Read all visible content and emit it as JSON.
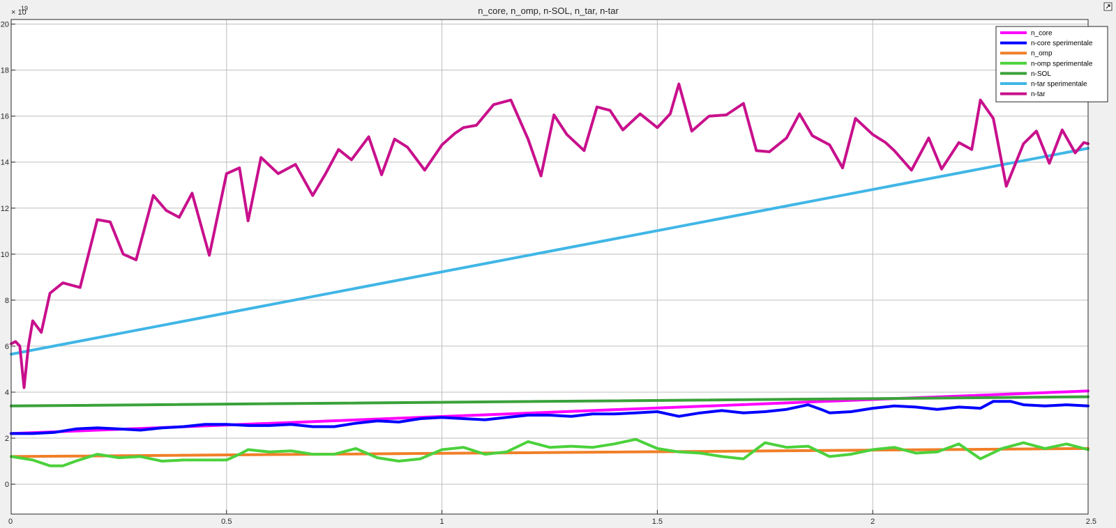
{
  "window": {
    "corner_icon_name": "expand-icon"
  },
  "chart_data": {
    "type": "line",
    "title": "n_core, n_omp, n-SOL, n_tar, n-tar",
    "xlabel": "",
    "ylabel": "",
    "xlim": [
      0,
      2.5
    ],
    "ylim": [
      -1.3,
      20.2
    ],
    "y_exponent_label": "× 10",
    "y_exponent_power": "19",
    "grid": true,
    "legend_position": "top-right",
    "x_ticks": [
      0,
      0.5,
      1,
      1.5,
      2,
      2.5
    ],
    "x_tick_labels": [
      "0",
      "0.5",
      "1",
      "1.5",
      "2",
      "2.5"
    ],
    "y_ticks": [
      0,
      2,
      4,
      6,
      8,
      10,
      12,
      14,
      16,
      18,
      20
    ],
    "y_tick_labels": [
      "0",
      "2",
      "4",
      "6",
      "8",
      "10",
      "12",
      "14",
      "16",
      "18",
      "20"
    ],
    "series": [
      {
        "name": "n_core",
        "color": "#ff00ff",
        "x": [
          0,
          2.5
        ],
        "values": [
          2.2,
          4.05
        ]
      },
      {
        "name": "n-core sperimentale",
        "color": "#0000ff",
        "x": [
          0,
          0.05,
          0.1,
          0.15,
          0.2,
          0.25,
          0.3,
          0.35,
          0.4,
          0.45,
          0.5,
          0.55,
          0.6,
          0.65,
          0.7,
          0.75,
          0.8,
          0.85,
          0.9,
          0.95,
          1.0,
          1.05,
          1.1,
          1.15,
          1.2,
          1.25,
          1.3,
          1.35,
          1.4,
          1.45,
          1.5,
          1.55,
          1.6,
          1.65,
          1.7,
          1.75,
          1.8,
          1.85,
          1.88,
          1.9,
          1.95,
          2.0,
          2.05,
          2.1,
          2.15,
          2.2,
          2.25,
          2.28,
          2.32,
          2.35,
          2.4,
          2.45,
          2.5
        ],
        "values": [
          2.2,
          2.2,
          2.25,
          2.4,
          2.45,
          2.4,
          2.35,
          2.45,
          2.5,
          2.6,
          2.6,
          2.55,
          2.55,
          2.6,
          2.5,
          2.5,
          2.65,
          2.75,
          2.7,
          2.85,
          2.9,
          2.85,
          2.8,
          2.9,
          3.0,
          3.0,
          2.95,
          3.05,
          3.05,
          3.1,
          3.15,
          2.95,
          3.1,
          3.2,
          3.1,
          3.15,
          3.25,
          3.45,
          3.25,
          3.1,
          3.15,
          3.3,
          3.4,
          3.35,
          3.25,
          3.35,
          3.3,
          3.6,
          3.6,
          3.45,
          3.4,
          3.45,
          3.4
        ]
      },
      {
        "name": "n_omp",
        "color": "#f07f28",
        "x": [
          0,
          2.5
        ],
        "values": [
          1.2,
          1.55
        ]
      },
      {
        "name": "n-omp sperimentale",
        "color": "#4cd13c",
        "x": [
          0,
          0.05,
          0.09,
          0.12,
          0.15,
          0.2,
          0.25,
          0.3,
          0.35,
          0.4,
          0.45,
          0.5,
          0.53,
          0.55,
          0.6,
          0.65,
          0.7,
          0.75,
          0.8,
          0.85,
          0.9,
          0.95,
          1.0,
          1.05,
          1.1,
          1.15,
          1.2,
          1.25,
          1.3,
          1.35,
          1.4,
          1.45,
          1.5,
          1.55,
          1.6,
          1.65,
          1.7,
          1.75,
          1.8,
          1.85,
          1.9,
          1.95,
          2.0,
          2.05,
          2.1,
          2.15,
          2.2,
          2.25,
          2.3,
          2.35,
          2.4,
          2.45,
          2.5
        ],
        "values": [
          1.2,
          1.05,
          0.8,
          0.8,
          1.0,
          1.3,
          1.15,
          1.2,
          1.0,
          1.05,
          1.05,
          1.05,
          1.3,
          1.5,
          1.4,
          1.45,
          1.3,
          1.3,
          1.55,
          1.15,
          1.0,
          1.1,
          1.5,
          1.6,
          1.3,
          1.4,
          1.85,
          1.6,
          1.65,
          1.6,
          1.75,
          1.95,
          1.55,
          1.4,
          1.35,
          1.2,
          1.1,
          1.8,
          1.6,
          1.65,
          1.2,
          1.3,
          1.5,
          1.6,
          1.35,
          1.4,
          1.75,
          1.1,
          1.55,
          1.8,
          1.55,
          1.75,
          1.5
        ]
      },
      {
        "name": "n-SOL",
        "color": "#3aa23a",
        "x": [
          0,
          2.5
        ],
        "values": [
          3.4,
          3.8
        ]
      },
      {
        "name": "n-tar sperimentale",
        "color": "#40b6e6",
        "x": [
          0,
          2.5
        ],
        "values": [
          5.65,
          14.6
        ]
      },
      {
        "name": "n-tar",
        "color": "#c8108c",
        "x": [
          0,
          0.01,
          0.02,
          0.03,
          0.04,
          0.05,
          0.07,
          0.09,
          0.12,
          0.16,
          0.2,
          0.23,
          0.26,
          0.29,
          0.33,
          0.36,
          0.39,
          0.42,
          0.46,
          0.5,
          0.53,
          0.55,
          0.58,
          0.62,
          0.66,
          0.7,
          0.73,
          0.76,
          0.79,
          0.83,
          0.86,
          0.89,
          0.92,
          0.96,
          1.0,
          1.03,
          1.05,
          1.08,
          1.12,
          1.16,
          1.2,
          1.23,
          1.26,
          1.29,
          1.33,
          1.36,
          1.39,
          1.42,
          1.46,
          1.5,
          1.53,
          1.55,
          1.58,
          1.62,
          1.66,
          1.7,
          1.73,
          1.76,
          1.8,
          1.83,
          1.86,
          1.9,
          1.93,
          1.96,
          2.0,
          2.03,
          2.05,
          2.09,
          2.13,
          2.16,
          2.2,
          2.23,
          2.25,
          2.28,
          2.31,
          2.35,
          2.38,
          2.41,
          2.44,
          2.47,
          2.49,
          2.5
        ],
        "values": [
          6.1,
          6.2,
          6.0,
          4.2,
          6.0,
          7.1,
          6.6,
          8.3,
          8.75,
          8.55,
          11.5,
          11.4,
          10.0,
          9.75,
          12.55,
          11.9,
          11.6,
          12.65,
          9.95,
          13.5,
          13.75,
          11.45,
          14.2,
          13.5,
          13.9,
          12.55,
          13.5,
          14.55,
          14.1,
          15.1,
          13.45,
          15.0,
          14.65,
          13.65,
          14.75,
          15.25,
          15.5,
          15.6,
          16.5,
          16.7,
          15.0,
          13.4,
          16.05,
          15.2,
          14.5,
          16.4,
          16.25,
          15.4,
          16.1,
          15.5,
          16.1,
          17.4,
          15.35,
          16.0,
          16.05,
          16.55,
          14.5,
          14.45,
          15.05,
          16.1,
          15.15,
          14.75,
          13.75,
          15.9,
          15.2,
          14.85,
          14.5,
          13.65,
          15.05,
          13.7,
          14.85,
          14.55,
          16.7,
          15.9,
          12.95,
          14.8,
          15.35,
          13.95,
          15.4,
          14.4,
          14.85,
          14.8
        ]
      }
    ]
  }
}
